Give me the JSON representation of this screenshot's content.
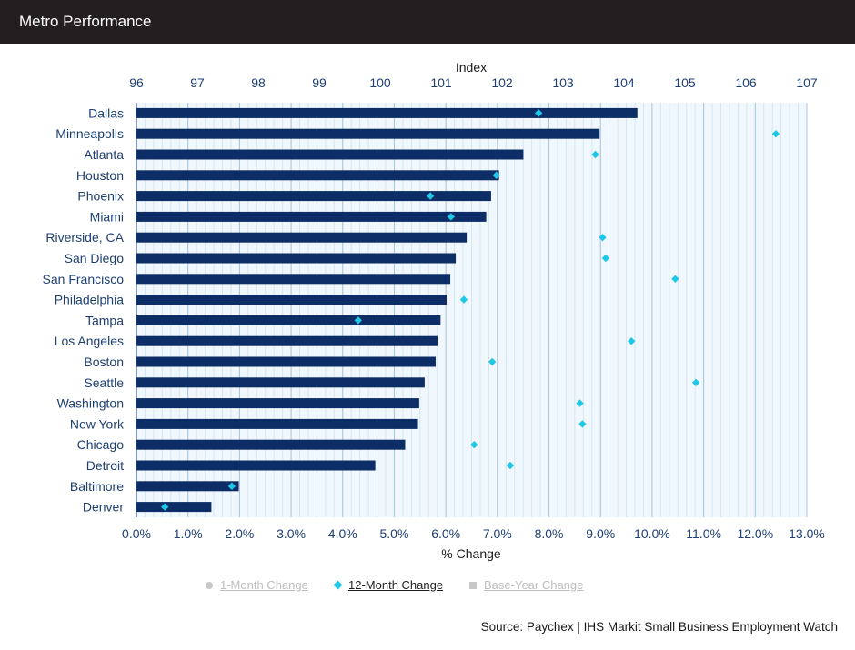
{
  "header": {
    "title": "Metro Performance"
  },
  "chart_data": {
    "type": "bar",
    "top_axis": {
      "label": "Index",
      "ticks": [
        96,
        97,
        98,
        99,
        100,
        101,
        102,
        103,
        104,
        105,
        106,
        107
      ],
      "range": [
        96,
        107
      ]
    },
    "bottom_axis": {
      "label": "% Change",
      "ticks": [
        "0.0%",
        "1.0%",
        "2.0%",
        "3.0%",
        "4.0%",
        "5.0%",
        "6.0%",
        "7.0%",
        "8.0%",
        "9.0%",
        "10.0%",
        "11.0%",
        "12.0%",
        "13.0%"
      ],
      "range": [
        0,
        13
      ]
    },
    "categories": [
      "Dallas",
      "Minneapolis",
      "Atlanta",
      "Houston",
      "Phoenix",
      "Miami",
      "Riverside, CA",
      "San Diego",
      "San Francisco",
      "Philadelphia",
      "Tampa",
      "Los Angeles",
      "Boston",
      "Seattle",
      "Washington",
      "New York",
      "Chicago",
      "Detroit",
      "Baltimore",
      "Denver"
    ],
    "series": [
      {
        "name": "Index",
        "axis": "top",
        "type": "bar",
        "color": "#0d2d66",
        "values": [
          104.22,
          103.6,
          102.35,
          101.95,
          101.82,
          101.74,
          101.42,
          101.24,
          101.15,
          101.09,
          100.99,
          100.94,
          100.91,
          100.73,
          100.64,
          100.62,
          100.41,
          99.92,
          97.68,
          97.23
        ]
      },
      {
        "name": "12-Month Change",
        "axis": "bottom",
        "type": "scatter",
        "color": "#1ec8e6",
        "values": [
          7.8,
          12.4,
          8.9,
          6.98,
          5.7,
          6.1,
          9.04,
          9.1,
          10.45,
          6.35,
          4.3,
          9.6,
          6.9,
          10.85,
          8.6,
          8.65,
          6.55,
          7.25,
          1.85,
          0.55
        ]
      }
    ],
    "grid": true
  },
  "legend": {
    "items": [
      {
        "label": "1-Month Change",
        "marker": "circle",
        "active": false
      },
      {
        "label": "12-Month Change",
        "marker": "diamond",
        "active": true
      },
      {
        "label": "Base-Year Change",
        "marker": "square",
        "active": false
      }
    ]
  },
  "source": "Source: Paychex | IHS Markit Small Business Employment Watch"
}
